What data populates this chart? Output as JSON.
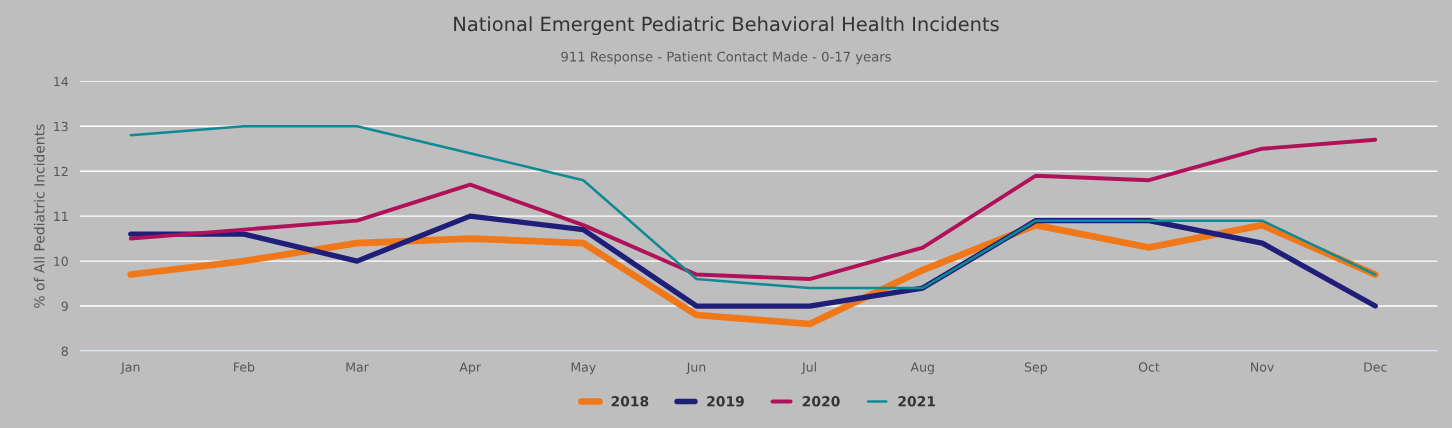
{
  "chart_data": {
    "type": "line",
    "title": "National Emergent Pediatric Behavioral Health Incidents",
    "subtitle": "911 Response - Patient Contact Made - 0-17 years",
    "ylabel": "% of All Pediatric Incidents",
    "categories": [
      "Jan",
      "Feb",
      "Mar",
      "Apr",
      "May",
      "Jun",
      "Jul",
      "Aug",
      "Sep",
      "Oct",
      "Nov",
      "Dec"
    ],
    "series": [
      {
        "name": "2018",
        "color": "#f07818",
        "values": [
          9.7,
          10.0,
          10.4,
          10.5,
          10.4,
          8.8,
          8.6,
          9.8,
          10.8,
          10.3,
          10.8,
          9.7
        ]
      },
      {
        "name": "2019",
        "color": "#1f1f7a",
        "values": [
          10.6,
          10.6,
          10.0,
          11.0,
          10.7,
          9.0,
          9.0,
          9.4,
          10.9,
          10.9,
          10.4,
          9.0
        ]
      },
      {
        "name": "2020",
        "color": "#b0125a",
        "values": [
          10.5,
          10.7,
          10.9,
          11.7,
          10.8,
          9.7,
          9.6,
          10.3,
          11.9,
          11.8,
          12.5,
          12.7
        ]
      },
      {
        "name": "2021",
        "color": "#0e8a94",
        "values": [
          12.8,
          13.0,
          13.0,
          12.4,
          11.8,
          9.6,
          9.4,
          9.4,
          10.9,
          10.9,
          10.9,
          9.7
        ]
      }
    ],
    "ylim": [
      8,
      14
    ],
    "yticks": [
      8,
      9,
      10,
      11,
      12,
      13,
      14
    ],
    "grid": "y",
    "legend": "bottom",
    "marker": "none",
    "line_style": "solid"
  }
}
